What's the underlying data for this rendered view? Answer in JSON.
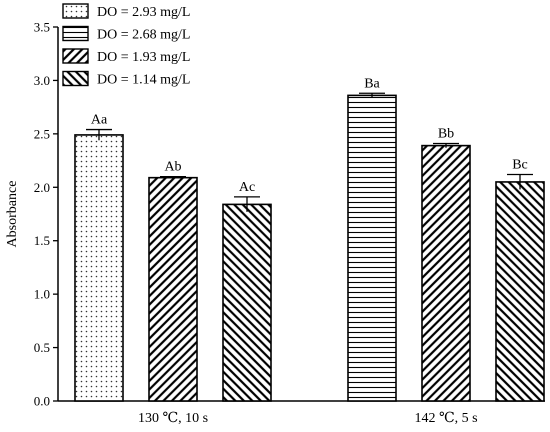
{
  "chart_data": {
    "type": "bar",
    "ylabel": "Absorbance",
    "ylim": [
      0,
      3.5
    ],
    "yticks": [
      "0.0",
      "0.5",
      "1.0",
      "1.5",
      "2.0",
      "2.5",
      "3.0",
      "3.5"
    ],
    "groups": [
      {
        "label": "130 ℃, 10 s",
        "bars": [
          {
            "series": "DO = 2.93 mg/L",
            "value": 2.49,
            "error": 0.05,
            "label": "Aa"
          },
          {
            "series": "DO = 1.93 mg/L",
            "value": 2.09,
            "error": 0.01,
            "label": "Ab"
          },
          {
            "series": "DO = 1.14 mg/L",
            "value": 1.84,
            "error": 0.07,
            "label": "Ac"
          }
        ]
      },
      {
        "label": "142 ℃, 5 s",
        "bars": [
          {
            "series": "DO = 2.68 mg/L",
            "value": 2.86,
            "error": 0.02,
            "label": "Ba"
          },
          {
            "series": "DO = 1.93 mg/L",
            "value": 2.39,
            "error": 0.02,
            "label": "Bb"
          },
          {
            "series": "DO = 1.14 mg/L",
            "value": 2.05,
            "error": 0.07,
            "label": "Bc"
          }
        ]
      }
    ],
    "series": [
      {
        "name": "DO = 2.93 mg/L",
        "pattern": "dots"
      },
      {
        "name": "DO = 2.68 mg/L",
        "pattern": "horizontal-lines"
      },
      {
        "name": "DO = 1.93 mg/L",
        "pattern": "diagonal-lines"
      },
      {
        "name": "DO = 1.14 mg/L",
        "pattern": "back-diagonal-lines"
      }
    ],
    "legend_position": "top-left",
    "grid": false
  }
}
